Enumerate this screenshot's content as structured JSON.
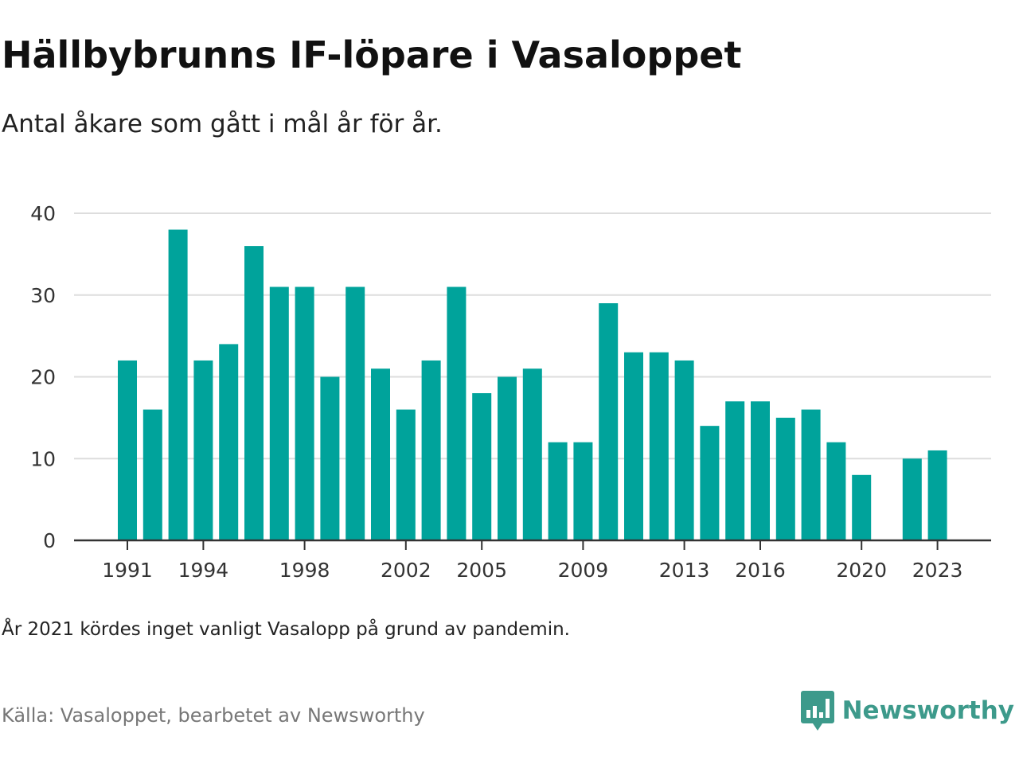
{
  "title": "Hällbybrunns IF-löpare i Vasaloppet",
  "subtitle": "Antal åkare som gått i mål år för år.",
  "note": "År 2021 kördes inget vanligt Vasalopp på grund av pandemin.",
  "source": "Källa: Vasaloppet, bearbetet av Newsworthy",
  "brand": {
    "name": "Newsworthy",
    "icon": "newsworthy-logo-icon"
  },
  "colors": {
    "bar": "#00a39b",
    "grid": "#dddddd",
    "axis": "#333333",
    "brand": "#3d9a8b"
  },
  "chart_data": {
    "type": "bar",
    "x": [
      1991,
      1992,
      1993,
      1994,
      1995,
      1996,
      1997,
      1998,
      1999,
      2000,
      2001,
      2002,
      2003,
      2004,
      2005,
      2006,
      2007,
      2008,
      2009,
      2010,
      2011,
      2012,
      2013,
      2014,
      2015,
      2016,
      2017,
      2018,
      2019,
      2020,
      2021,
      2022,
      2023
    ],
    "values": [
      22,
      16,
      38,
      22,
      24,
      36,
      31,
      31,
      20,
      31,
      21,
      16,
      22,
      31,
      18,
      20,
      21,
      12,
      12,
      29,
      23,
      23,
      22,
      14,
      17,
      17,
      15,
      16,
      12,
      8,
      null,
      10,
      11
    ],
    "ylim": [
      0,
      40
    ],
    "yticks": [
      0,
      10,
      20,
      30,
      40
    ],
    "xticks": [
      1991,
      1994,
      1998,
      2002,
      2005,
      2009,
      2013,
      2016,
      2020,
      2023
    ],
    "grid": true,
    "legend": "none"
  }
}
